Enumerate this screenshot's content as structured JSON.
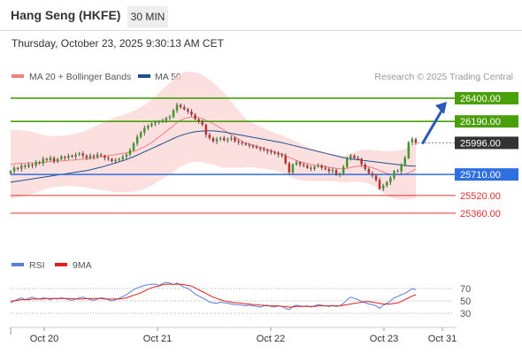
{
  "header": {
    "title": "Hang Seng (HKFE)",
    "timeframe": "30 MIN"
  },
  "date_line": "Thursday, October 23, 2025 9:30:13 AM CET",
  "legend": {
    "ma20": "MA 20 + Bollinger Bands",
    "ma50": "MA 50",
    "ma20_color": "#f08080",
    "ma50_color": "#1f4e8c"
  },
  "watermark": "Research © 2025 Trading Central",
  "rsi_legend": {
    "rsi": "RSI",
    "ma9": "9MA",
    "rsi_color": "#5b7fd6",
    "ma9_color": "#e02020"
  },
  "chart_data": {
    "type": "candlestick",
    "instrument": "Hang Seng (HKFE)",
    "interval": "30 MIN",
    "x_ticks": [
      "Oct 20",
      "Oct 21",
      "Oct 22",
      "Oct 23",
      "Oct 31"
    ],
    "ylim": [
      24950,
      26520
    ],
    "levels": [
      {
        "value": 26400,
        "label": "26400.00",
        "kind": "resistance",
        "color": "#4aa00a"
      },
      {
        "value": 26190,
        "label": "26190.00",
        "kind": "resistance",
        "color": "#4aa00a"
      },
      {
        "value": 25996,
        "label": "25996.00",
        "kind": "last",
        "color": "#333333"
      },
      {
        "value": 25710,
        "label": "25710.00",
        "kind": "pivot",
        "color": "#2f6fe0"
      },
      {
        "value": 25520,
        "label": "25520.00",
        "kind": "support",
        "color": "#e03030"
      },
      {
        "value": 25360,
        "label": "25360.00",
        "kind": "support",
        "color": "#e03030"
      }
    ],
    "arrow": {
      "from": 25996,
      "to": 26400,
      "direction": "up"
    },
    "close": [
      25740,
      25770,
      25760,
      25790,
      25780,
      25800,
      25790,
      25820,
      25810,
      25850,
      25840,
      25860,
      25830,
      25850,
      25870,
      25860,
      25880,
      25870,
      25890,
      25900,
      25880,
      25860,
      25880,
      25870,
      25890,
      25880,
      25860,
      25850,
      25830,
      25840,
      25850,
      25870,
      25890,
      25930,
      25990,
      26050,
      26090,
      26130,
      26150,
      26170,
      26180,
      26190,
      26200,
      26220,
      26230,
      26290,
      26340,
      26320,
      26300,
      26280,
      26250,
      26210,
      26190,
      26160,
      26070,
      26040,
      26010,
      26030,
      26040,
      26020,
      26030,
      26040,
      26010,
      26000,
      25990,
      25980,
      25970,
      25960,
      25950,
      25940,
      25930,
      25920,
      25910,
      25900,
      25890,
      25880,
      25810,
      25730,
      25800,
      25820,
      25800,
      25790,
      25770,
      25760,
      25780,
      25790,
      25770,
      25760,
      25740,
      25750,
      25710,
      25720,
      25780,
      25860,
      25880,
      25860,
      25850,
      25800,
      25760,
      25720,
      25700,
      25660,
      25580,
      25610,
      25640,
      25680,
      25740,
      25740,
      25800,
      25860,
      26000,
      26030,
      25996
    ],
    "ma20": [
      25800,
      25805,
      25808,
      25810,
      25812,
      25814,
      25815,
      25816,
      25818,
      25820,
      25822,
      25825,
      25828,
      25830,
      25832,
      25835,
      25838,
      25840,
      25842,
      25845,
      25848,
      25850,
      25855,
      25860,
      25865,
      25870,
      25875,
      25880,
      25885,
      25890,
      25895,
      25900,
      25905,
      25912,
      25920,
      25930,
      25945,
      25960,
      25980,
      26000,
      26025,
      26050,
      26075,
      26100,
      26125,
      26150,
      26180,
      26200,
      26215,
      26225,
      26230,
      26230,
      26225,
      26215,
      26200,
      26185,
      26170,
      26150,
      26130,
      26110,
      26090,
      26070,
      26050,
      26030,
      26010,
      25995,
      25985,
      25975,
      25965,
      25955,
      25945,
      25935,
      25925,
      25915,
      25905,
      25895,
      25880,
      25865,
      25850,
      25835,
      25825,
      25815,
      25808,
      25800,
      25795,
      25790,
      25785,
      25780,
      25775,
      25770,
      25765,
      25762,
      25760,
      25765,
      25772,
      25780,
      25785,
      25788,
      25785,
      25780,
      25770,
      25760,
      25745,
      25732,
      25720,
      25712,
      25708,
      25706,
      25706,
      25712,
      25725,
      25740,
      25760
    ],
    "ma50": [
      25640,
      25645,
      25650,
      25655,
      25660,
      25665,
      25670,
      25675,
      25680,
      25685,
      25690,
      25695,
      25700,
      25705,
      25710,
      25715,
      25720,
      25725,
      25730,
      25735,
      25740,
      25745,
      25752,
      25760,
      25768,
      25776,
      25785,
      25795,
      25805,
      25815,
      25825,
      25835,
      25845,
      25858,
      25870,
      25885,
      25900,
      25915,
      25930,
      25945,
      25960,
      25975,
      25990,
      26005,
      26020,
      26035,
      26050,
      26062,
      26073,
      26082,
      26090,
      26096,
      26100,
      26103,
      26105,
      26105,
      26104,
      26102,
      26098,
      26093,
      26088,
      26082,
      26076,
      26070,
      26064,
      26058,
      26052,
      26046,
      26040,
      26034,
      26028,
      26022,
      26016,
      26010,
      26004,
      25998,
      25990,
      25982,
      25974,
      25966,
      25958,
      25950,
      25942,
      25934,
      25926,
      25918,
      25910,
      25902,
      25894,
      25886,
      25878,
      25870,
      25862,
      25856,
      25851,
      25847,
      25843,
      25839,
      25835,
      25831,
      25827,
      25823,
      25819,
      25815,
      25811,
      25807,
      25803,
      25799,
      25795,
      25791,
      25788,
      25786,
      25785
    ],
    "bollinger_width": [
      310,
      310,
      305,
      300,
      295,
      290,
      280,
      270,
      260,
      250,
      240,
      235,
      230,
      230,
      230,
      230,
      230,
      235,
      240,
      245,
      250,
      260,
      270,
      280,
      290,
      300,
      310,
      320,
      330,
      340,
      345,
      350,
      355,
      360,
      365,
      370,
      375,
      380,
      385,
      390,
      395,
      400,
      405,
      410,
      415,
      420,
      420,
      420,
      420,
      415,
      410,
      405,
      400,
      395,
      390,
      380,
      370,
      360,
      350,
      340,
      320,
      300,
      280,
      260,
      240,
      220,
      210,
      200,
      195,
      190,
      185,
      180,
      175,
      170,
      170,
      170,
      170,
      170,
      170,
      170,
      165,
      160,
      155,
      150,
      145,
      140,
      135,
      130,
      125,
      120,
      120,
      120,
      120,
      125,
      130,
      135,
      140,
      145,
      150,
      155,
      160,
      170,
      180,
      190,
      200,
      210,
      215,
      220,
      225,
      230,
      240,
      250,
      260
    ],
    "rsi": {
      "ylim": [
        10,
        90
      ],
      "ticks": [
        70,
        50,
        30
      ],
      "rsi": [
        47,
        50,
        53,
        55,
        52,
        54,
        56,
        54,
        53,
        55,
        54,
        52,
        54,
        53,
        55,
        54,
        52,
        51,
        53,
        55,
        56,
        54,
        52,
        51,
        53,
        55,
        54,
        52,
        50,
        52,
        54,
        57,
        60,
        64,
        68,
        71,
        73,
        75,
        76,
        77,
        77,
        75,
        78,
        80,
        79,
        76,
        79,
        75,
        72,
        70,
        66,
        61,
        58,
        55,
        52,
        48,
        47,
        46,
        48,
        47,
        46,
        45,
        44,
        44,
        43,
        42,
        43,
        42,
        41,
        40,
        42,
        43,
        41,
        40,
        42,
        41,
        38,
        36,
        41,
        43,
        42,
        41,
        42,
        40,
        42,
        44,
        43,
        42,
        41,
        43,
        41,
        42,
        46,
        52,
        56,
        54,
        52,
        49,
        47,
        45,
        44,
        42,
        38,
        43,
        46,
        50,
        55,
        57,
        60,
        62,
        66,
        70,
        68
      ],
      "ma9": [
        50,
        50,
        51,
        52,
        52,
        52,
        53,
        53,
        53,
        53,
        54,
        54,
        54,
        54,
        54,
        54,
        54,
        54,
        53,
        53,
        53,
        54,
        54,
        54,
        54,
        54,
        53,
        53,
        53,
        53,
        53,
        54,
        55,
        57,
        59,
        61,
        63,
        66,
        69,
        71,
        73,
        74,
        76,
        77,
        77,
        77,
        77,
        77,
        76,
        75,
        74,
        71,
        68,
        65,
        62,
        59,
        56,
        54,
        52,
        50,
        49,
        48,
        47,
        47,
        46,
        45,
        45,
        44,
        44,
        43,
        43,
        42,
        42,
        42,
        42,
        41,
        41,
        40,
        40,
        41,
        41,
        41,
        41,
        41,
        41,
        42,
        42,
        42,
        42,
        42,
        42,
        42,
        43,
        44,
        45,
        46,
        47,
        48,
        49,
        49,
        48,
        47,
        46,
        45,
        45,
        45,
        46,
        47,
        49,
        52,
        55,
        58,
        60
      ]
    }
  }
}
